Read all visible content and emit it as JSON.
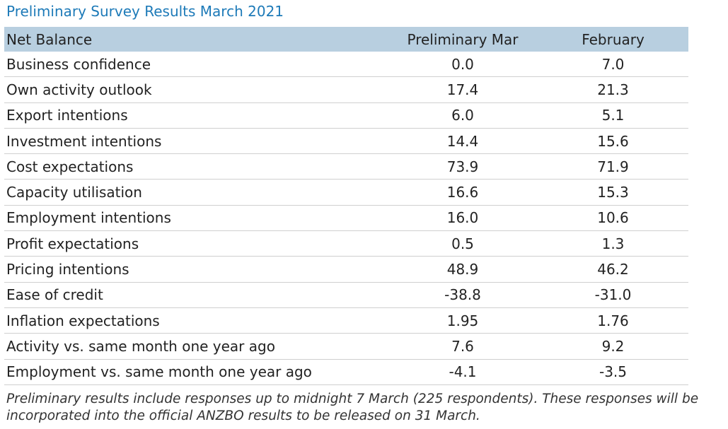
{
  "header": {
    "title": "Preliminary Survey Results March 2021"
  },
  "table": {
    "columns": [
      "Net Balance",
      "Preliminary Mar",
      "February"
    ],
    "rows": [
      [
        "Business confidence",
        "0.0",
        "7.0"
      ],
      [
        "Own activity outlook",
        "17.4",
        "21.3"
      ],
      [
        "Export intentions",
        "6.0",
        "5.1"
      ],
      [
        "Investment intentions",
        "14.4",
        "15.6"
      ],
      [
        "Cost expectations",
        "73.9",
        "71.9"
      ],
      [
        "Capacity utilisation",
        "16.6",
        "15.3"
      ],
      [
        "Employment intentions",
        "16.0",
        "10.6"
      ],
      [
        "Profit expectations",
        "0.5",
        "1.3"
      ],
      [
        "Pricing intentions",
        "48.9",
        "46.2"
      ],
      [
        "Ease of credit",
        "-38.8",
        "-31.0"
      ],
      [
        "Inflation expectations",
        "1.95",
        "1.76"
      ],
      [
        "Activity vs. same month one year ago",
        "7.6",
        "9.2"
      ],
      [
        "Employment vs. same month one year ago",
        "-4.1",
        "-3.5"
      ]
    ]
  },
  "footnote": "Preliminary results include responses up to midnight 7 March (225 respondents). These responses will be incorporated into the official ANZBO results to be released on 31 March."
}
